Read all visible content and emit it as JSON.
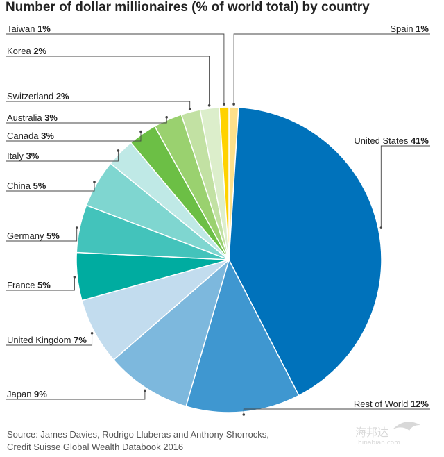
{
  "chart_data": {
    "type": "pie",
    "title": "Number of dollar millionaires (% of world total) by country",
    "categories": [
      "Spain",
      "United States",
      "Rest of World",
      "Japan",
      "United Kingdom",
      "France",
      "Germany",
      "China",
      "Italy",
      "Canada",
      "Australia",
      "Switzerland",
      "Korea",
      "Taiwan"
    ],
    "values": [
      1,
      41,
      12,
      9,
      7,
      5,
      5,
      5,
      3,
      3,
      3,
      2,
      2,
      1
    ],
    "value_suffix": "%",
    "colors": [
      "#fde08a",
      "#0072bb",
      "#3f97d0",
      "#7db8dd",
      "#c2dcee",
      "#00aca0",
      "#43c3bb",
      "#7fd6d0",
      "#bfe9e6",
      "#6cbf45",
      "#9ad16f",
      "#c2e1a3",
      "#dceecb",
      "#ffd200"
    ],
    "start_angle_deg": 0,
    "direction": "clockwise",
    "legend": "none"
  },
  "source": {
    "line1": "Source: James Davies, Rodrigo Lluberas and Anthony Shorrocks,",
    "line2": "Credit Suisse Global Wealth Databook 2016"
  },
  "watermark": {
    "text": "海邦达",
    "subtext": "hinabian.com"
  }
}
